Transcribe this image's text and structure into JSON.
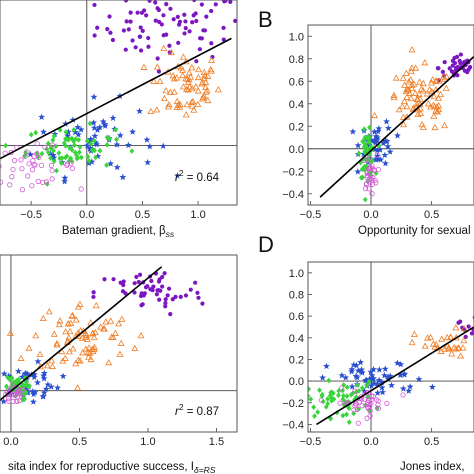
{
  "panel_labels": [
    "B",
    "D"
  ],
  "chart_data": [
    {
      "type": "scatter",
      "panel": "A",
      "xlabel": "Bateman gradient, β",
      "xlabel_sub": "ss",
      "annotation": {
        "text_prefix": "r",
        "text_sup": "2",
        "text_suffix": " = 0.64"
      },
      "xlim": [
        -0.78,
        1.35
      ],
      "ylim": [
        -0.45,
        1.1
      ],
      "xticks": [
        {
          "v": -0.5,
          "l": "−0.5"
        },
        {
          "v": 0.0,
          "l": "0.0"
        },
        {
          "v": 0.5,
          "l": "0.5"
        },
        {
          "v": 1.0,
          "l": "1.0"
        }
      ],
      "yticks": [],
      "grid": false,
      "reference_lines": {
        "x": 0,
        "y": 0
      },
      "trendline": [
        [
          -0.78,
          -0.1
        ],
        [
          1.3,
          0.81
        ]
      ],
      "series": [
        {
          "group": "purple",
          "marker": "dot",
          "color": "#7a16c2",
          "cx": 0.75,
          "cy": 0.9,
          "sx": 0.33,
          "sy": 0.13,
          "n": 80
        },
        {
          "group": "orange",
          "marker": "triangle",
          "color": "#f07d24",
          "cx": 0.88,
          "cy": 0.45,
          "sx": 0.16,
          "sy": 0.13,
          "n": 70
        },
        {
          "group": "blue",
          "marker": "star",
          "color": "#2a4fcf",
          "cx": 0.08,
          "cy": 0.05,
          "sx": 0.27,
          "sy": 0.14,
          "n": 60
        },
        {
          "group": "green",
          "marker": "diamond",
          "color": "#39d43a",
          "cx": -0.15,
          "cy": -0.02,
          "sx": 0.2,
          "sy": 0.08,
          "n": 70
        },
        {
          "group": "magenta",
          "marker": "circle",
          "color": "#d35bd6",
          "cx": -0.5,
          "cy": -0.15,
          "sx": 0.2,
          "sy": 0.07,
          "n": 40
        }
      ]
    },
    {
      "type": "scatter",
      "panel": "B",
      "xlabel": "Opportunity for sexual",
      "xlim": [
        -0.52,
        0.85
      ],
      "ylim": [
        -0.5,
        1.1
      ],
      "xticks": [
        {
          "v": -0.5,
          "l": "−0.5"
        },
        {
          "v": 0.0,
          "l": "0.0"
        },
        {
          "v": 0.5,
          "l": "0.5"
        }
      ],
      "yticks": [
        {
          "v": 1.0,
          "l": "1.0"
        },
        {
          "v": 0.8,
          "l": "0.8"
        },
        {
          "v": 0.6,
          "l": "0.6"
        },
        {
          "v": 0.4,
          "l": "0.4"
        },
        {
          "v": 0.2,
          "l": "0.2"
        },
        {
          "v": 0.0,
          "l": "0.0"
        },
        {
          "v": -0.2,
          "l": "−0.2"
        },
        {
          "v": -0.4,
          "l": "−0.4"
        }
      ],
      "grid": false,
      "reference_lines": {
        "x": 0,
        "y": 0
      },
      "trendline": [
        [
          -0.42,
          -0.43
        ],
        [
          0.85,
          0.82
        ]
      ],
      "series": [
        {
          "group": "purple",
          "marker": "dot",
          "color": "#7a16c2",
          "cx": 0.72,
          "cy": 0.72,
          "sx": 0.08,
          "sy": 0.06,
          "n": 40
        },
        {
          "group": "orange",
          "marker": "triangle",
          "color": "#f07d24",
          "cx": 0.4,
          "cy": 0.42,
          "sx": 0.14,
          "sy": 0.14,
          "n": 80
        },
        {
          "group": "blue",
          "marker": "star",
          "color": "#2a4fcf",
          "cx": 0.05,
          "cy": 0.05,
          "sx": 0.07,
          "sy": 0.1,
          "n": 45
        },
        {
          "group": "green",
          "marker": "diamond",
          "color": "#39d43a",
          "cx": -0.03,
          "cy": -0.05,
          "sx": 0.03,
          "sy": 0.1,
          "n": 60
        },
        {
          "group": "magenta",
          "marker": "circle",
          "color": "#d35bd6",
          "cx": -0.01,
          "cy": -0.22,
          "sx": 0.03,
          "sy": 0.08,
          "n": 30
        }
      ]
    },
    {
      "type": "scatter",
      "panel": "C",
      "xlabel": "sita index for reproductive success, I",
      "xlabel_sub": "δ=RS",
      "annotation": {
        "text_prefix": "r",
        "text_sup": "2",
        "text_suffix": " = 0.87"
      },
      "xlim": [
        -0.08,
        1.65
      ],
      "ylim": [
        -0.35,
        1.15
      ],
      "xticks": [
        {
          "v": 0.0,
          "l": "0.0"
        },
        {
          "v": 0.5,
          "l": "0.5"
        },
        {
          "v": 1.0,
          "l": "1.0"
        },
        {
          "v": 1.5,
          "l": "1.5"
        }
      ],
      "yticks": [],
      "grid": false,
      "reference_lines": {
        "x": 0,
        "y": 0
      },
      "trendline": [
        [
          -0.08,
          -0.08
        ],
        [
          1.1,
          1.05
        ]
      ],
      "series": [
        {
          "group": "purple",
          "marker": "dot",
          "color": "#7a16c2",
          "cx": 1.02,
          "cy": 0.83,
          "sx": 0.2,
          "sy": 0.1,
          "n": 55
        },
        {
          "group": "orange",
          "marker": "triangle",
          "color": "#f07d24",
          "cx": 0.52,
          "cy": 0.45,
          "sx": 0.18,
          "sy": 0.15,
          "n": 80
        },
        {
          "group": "blue",
          "marker": "star",
          "color": "#2a4fcf",
          "cx": 0.12,
          "cy": 0.06,
          "sx": 0.12,
          "sy": 0.08,
          "n": 45
        },
        {
          "group": "green",
          "marker": "diamond",
          "color": "#39d43a",
          "cx": 0.04,
          "cy": 0.02,
          "sx": 0.04,
          "sy": 0.05,
          "n": 40
        },
        {
          "group": "magenta",
          "marker": "circle",
          "color": "#d35bd6",
          "cx": 0.02,
          "cy": -0.03,
          "sx": 0.03,
          "sy": 0.04,
          "n": 25
        }
      ]
    },
    {
      "type": "scatter",
      "panel": "D",
      "xlabel": "Jones index,",
      "xlim": [
        -0.52,
        0.85
      ],
      "ylim": [
        -0.47,
        1.1
      ],
      "xticks": [
        {
          "v": -0.5,
          "l": "−0.5"
        },
        {
          "v": 0.0,
          "l": "0.0"
        },
        {
          "v": 0.5,
          "l": "0.5"
        }
      ],
      "yticks": [
        {
          "v": 1.0,
          "l": "1.0"
        },
        {
          "v": 0.8,
          "l": "0.8"
        },
        {
          "v": 0.6,
          "l": "0.6"
        },
        {
          "v": 0.4,
          "l": "0.4"
        },
        {
          "v": 0.2,
          "l": "0.2"
        },
        {
          "v": 0.0,
          "l": "0.0"
        },
        {
          "v": -0.2,
          "l": "−0.2"
        },
        {
          "v": -0.4,
          "l": "−0.4"
        }
      ],
      "grid": false,
      "reference_lines": {
        "x": 0,
        "y": 0
      },
      "trendline": [
        [
          -0.45,
          -0.4
        ],
        [
          0.85,
          0.5
        ]
      ],
      "series": [
        {
          "group": "purple",
          "marker": "dot",
          "color": "#7a16c2",
          "cx": 0.8,
          "cy": 0.52,
          "sx": 0.04,
          "sy": 0.05,
          "n": 10
        },
        {
          "group": "orange",
          "marker": "triangle",
          "color": "#f07d24",
          "cx": 0.6,
          "cy": 0.32,
          "sx": 0.12,
          "sy": 0.08,
          "n": 30
        },
        {
          "group": "blue",
          "marker": "star",
          "color": "#2a4fcf",
          "cx": 0.05,
          "cy": 0.02,
          "sx": 0.2,
          "sy": 0.08,
          "n": 55
        },
        {
          "group": "green",
          "marker": "diamond",
          "color": "#39d43a",
          "cx": -0.25,
          "cy": -0.17,
          "sx": 0.14,
          "sy": 0.08,
          "n": 60
        },
        {
          "group": "magenta",
          "marker": "circle",
          "color": "#d35bd6",
          "cx": -0.05,
          "cy": -0.2,
          "sx": 0.12,
          "sy": 0.06,
          "n": 40
        }
      ]
    }
  ]
}
